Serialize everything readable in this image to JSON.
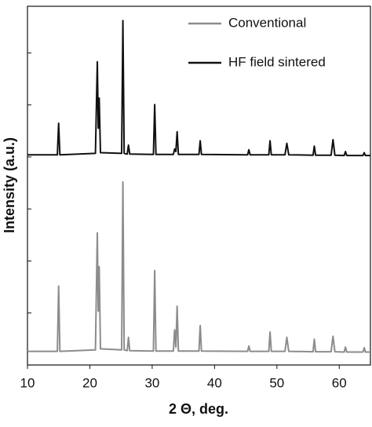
{
  "chart_data": {
    "type": "line",
    "xlabel": "2 Θ, deg.",
    "ylabel": "Intensity (a.u.)",
    "x": [
      10,
      14.8,
      15.0,
      15.2,
      20.9,
      21.2,
      21.35,
      21.5,
      21.7,
      25.1,
      25.3,
      25.5,
      26.0,
      26.2,
      26.4,
      30.2,
      30.4,
      30.6,
      33.4,
      33.6,
      33.8,
      34.0,
      34.2,
      37.5,
      37.7,
      37.9,
      45.3,
      45.5,
      45.7,
      48.7,
      48.9,
      49.1,
      51.3,
      51.6,
      51.9,
      55.8,
      56.0,
      56.2,
      58.7,
      59.0,
      59.3,
      60.8,
      61.0,
      61.2,
      63.8,
      64.0,
      64.2,
      65
    ],
    "series": [
      {
        "name": "Conventional",
        "color": "#8c8c8c",
        "values": [
          3.8,
          3.8,
          22,
          3.8,
          4.2,
          36.8,
          15,
          27.4,
          4.5,
          4.2,
          51,
          4.2,
          4,
          7.7,
          4,
          3.9,
          26.3,
          3.9,
          3.9,
          9.8,
          5,
          16.4,
          3.9,
          3.9,
          11,
          3.9,
          3.8,
          5.3,
          3.8,
          3.8,
          9.2,
          3.8,
          3.8,
          7.7,
          3.8,
          3.7,
          7.2,
          3.7,
          3.7,
          8,
          3.7,
          3.6,
          5,
          3.6,
          3.6,
          4.8,
          3.6,
          3.6
        ]
      },
      {
        "name": "HF field sintered",
        "color": "#111111",
        "values": [
          58.6,
          58.6,
          67.4,
          58.6,
          59,
          84.5,
          66,
          74.4,
          59.2,
          59,
          96,
          59,
          58.8,
          61.3,
          58.8,
          58.7,
          72.6,
          58.7,
          58.7,
          60.2,
          59.5,
          65,
          58.7,
          58.7,
          62.5,
          58.7,
          58.6,
          60,
          58.6,
          58.6,
          62.5,
          58.6,
          58.6,
          61.8,
          58.6,
          58.5,
          61,
          58.5,
          58.5,
          62.8,
          58.5,
          58.4,
          59.5,
          58.4,
          58.4,
          59.2,
          58.4,
          58.4
        ]
      }
    ],
    "xlim": [
      10,
      65
    ],
    "xticks": [
      10,
      20,
      30,
      40,
      50,
      60
    ],
    "ylim": [
      0,
      100
    ],
    "yticks": [
      14.5,
      29,
      43.5,
      58,
      72.5,
      87
    ],
    "ytick_labels": false,
    "legend": "upper right"
  }
}
